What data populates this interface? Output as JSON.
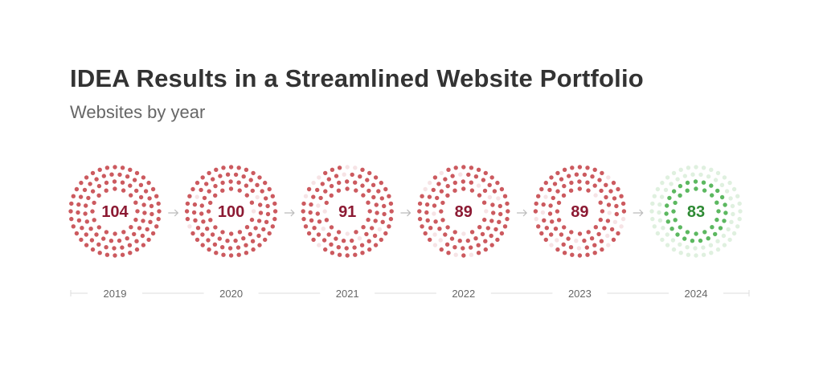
{
  "chart_data": {
    "type": "dot-ring",
    "title": "IDEA Results in a Streamlined Website Portfolio",
    "subtitle": "Websites by year",
    "categories": [
      "2019",
      "2020",
      "2021",
      "2022",
      "2023",
      "2024"
    ],
    "values": [
      104,
      100,
      91,
      89,
      89,
      83
    ],
    "colors": {
      "decline": "#cc5a5f",
      "decline_faded": "#f6e3e5",
      "decline_label": "#8c1a33",
      "final": "#5cb860",
      "final_faded": "#dff0df",
      "final_label": "#2e8a34",
      "axis": "#dddddd",
      "tick_label": "#666666",
      "arrow": "#bbbbbb"
    }
  }
}
